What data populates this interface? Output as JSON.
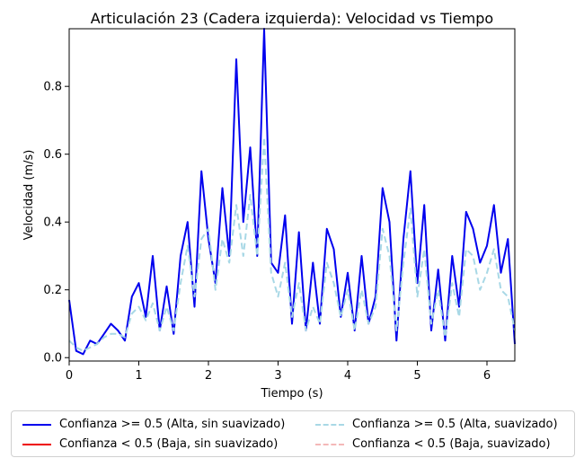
{
  "chart_data": {
    "type": "line",
    "title": "Articulación 23 (Cadera izquierda): Velocidad vs Tiempo",
    "xlabel": "Tiempo (s)",
    "ylabel": "Velocidad (m/s)",
    "xlim": [
      0,
      6.4
    ],
    "ylim": [
      -0.01,
      0.97
    ],
    "xticks": [
      "0",
      "1",
      "2",
      "3",
      "4",
      "5",
      "6"
    ],
    "yticks": [
      "0.0",
      "0.2",
      "0.4",
      "0.6",
      "0.8"
    ],
    "grid": false,
    "legend_placement": "bottom",
    "series": [
      {
        "name": "Confianza >= 0.5 (Alta, sin suavizado)",
        "color": "#0000ee",
        "style": "solid",
        "x": [
          0.0,
          0.1,
          0.2,
          0.3,
          0.4,
          0.5,
          0.6,
          0.7,
          0.8,
          0.9,
          1.0,
          1.1,
          1.2,
          1.3,
          1.4,
          1.5,
          1.6,
          1.7,
          1.8,
          1.9,
          2.0,
          2.1,
          2.2,
          2.3,
          2.4,
          2.5,
          2.6,
          2.7,
          2.8,
          2.9,
          3.0,
          3.1,
          3.2,
          3.3,
          3.4,
          3.5,
          3.6,
          3.7,
          3.8,
          3.9,
          4.0,
          4.1,
          4.2,
          4.3,
          4.4,
          4.5,
          4.6,
          4.7,
          4.8,
          4.9,
          5.0,
          5.1,
          5.2,
          5.3,
          5.4,
          5.5,
          5.6,
          5.7,
          5.8,
          5.9,
          6.0,
          6.1,
          6.2,
          6.3,
          6.4
        ],
        "values": [
          0.17,
          0.02,
          0.01,
          0.05,
          0.04,
          0.07,
          0.1,
          0.08,
          0.05,
          0.18,
          0.22,
          0.12,
          0.3,
          0.08,
          0.21,
          0.07,
          0.3,
          0.4,
          0.15,
          0.55,
          0.35,
          0.22,
          0.5,
          0.3,
          0.88,
          0.4,
          0.62,
          0.3,
          0.97,
          0.28,
          0.25,
          0.42,
          0.1,
          0.37,
          0.08,
          0.28,
          0.1,
          0.38,
          0.32,
          0.12,
          0.25,
          0.08,
          0.3,
          0.1,
          0.18,
          0.5,
          0.4,
          0.05,
          0.35,
          0.55,
          0.22,
          0.45,
          0.08,
          0.26,
          0.05,
          0.3,
          0.15,
          0.43,
          0.38,
          0.28,
          0.33,
          0.45,
          0.25,
          0.35,
          0.04
        ]
      },
      {
        "name": "Confianza < 0.5 (Baja, sin suavizado)",
        "color": "#ee0000",
        "style": "solid",
        "x": [],
        "values": []
      },
      {
        "name": "Confianza >= 0.5 (Alta, suavizado)",
        "color": "#a8d8e6",
        "style": "dashed",
        "x": [
          0.0,
          0.1,
          0.2,
          0.3,
          0.4,
          0.5,
          0.6,
          0.7,
          0.8,
          0.9,
          1.0,
          1.1,
          1.2,
          1.3,
          1.4,
          1.5,
          1.6,
          1.7,
          1.8,
          1.9,
          2.0,
          2.1,
          2.2,
          2.3,
          2.4,
          2.5,
          2.6,
          2.7,
          2.8,
          2.9,
          3.0,
          3.1,
          3.2,
          3.3,
          3.4,
          3.5,
          3.6,
          3.7,
          3.8,
          3.9,
          4.0,
          4.1,
          4.2,
          4.3,
          4.4,
          4.5,
          4.6,
          4.7,
          4.8,
          4.9,
          5.0,
          5.1,
          5.2,
          5.3,
          5.4,
          5.5,
          5.6,
          5.7,
          5.8,
          5.9,
          6.0,
          6.1,
          6.2,
          6.3,
          6.4
        ],
        "values": [
          0.05,
          0.03,
          0.02,
          0.03,
          0.04,
          0.06,
          0.07,
          0.07,
          0.06,
          0.13,
          0.15,
          0.11,
          0.16,
          0.08,
          0.15,
          0.08,
          0.22,
          0.33,
          0.18,
          0.35,
          0.38,
          0.2,
          0.35,
          0.28,
          0.45,
          0.3,
          0.48,
          0.3,
          0.65,
          0.25,
          0.18,
          0.28,
          0.12,
          0.22,
          0.08,
          0.15,
          0.1,
          0.28,
          0.22,
          0.12,
          0.2,
          0.08,
          0.2,
          0.1,
          0.15,
          0.38,
          0.3,
          0.08,
          0.28,
          0.44,
          0.18,
          0.32,
          0.1,
          0.2,
          0.06,
          0.22,
          0.12,
          0.32,
          0.3,
          0.2,
          0.25,
          0.32,
          0.2,
          0.18,
          0.08
        ]
      },
      {
        "name": "Confianza < 0.5 (Baja, suavizado)",
        "color": "#f4b8b8",
        "style": "dashed",
        "x": [],
        "values": []
      }
    ]
  }
}
